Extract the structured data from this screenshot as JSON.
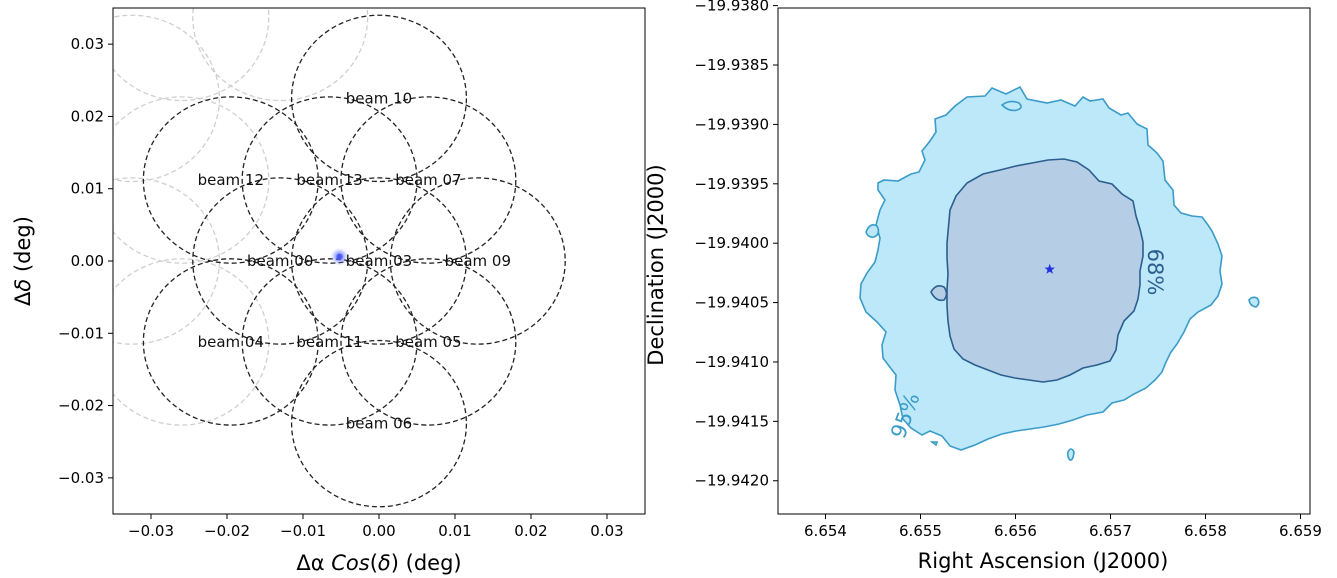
{
  "chart_data": [
    {
      "type": "scatter",
      "xlabel_parts": [
        "Δα ",
        "Cos",
        "(",
        "δ",
        ") (deg)"
      ],
      "ylabel_parts": [
        "Δ",
        "δ",
        " (deg)"
      ],
      "xlim": [
        -0.035,
        0.035
      ],
      "ylim": [
        -0.035,
        0.035
      ],
      "xticks": [
        "−0.03",
        "−0.02",
        "−0.01",
        "0.00",
        "0.01",
        "0.02",
        "0.03"
      ],
      "xtick_values": [
        -0.03,
        -0.02,
        -0.01,
        0.0,
        0.01,
        0.02,
        0.03
      ],
      "yticks": [
        "0.03",
        "0.02",
        "0.01",
        "0.00",
        "−0.01",
        "−0.02",
        "−0.03"
      ],
      "ytick_values": [
        0.03,
        0.02,
        0.01,
        0.0,
        -0.01,
        -0.02,
        -0.03
      ],
      "beam_radius": 0.0115,
      "beams": [
        {
          "name": "beam 10",
          "x": 0.0,
          "y": 0.0225,
          "color": "#222222"
        },
        {
          "name": "beam 12",
          "x": -0.0195,
          "y": 0.0112,
          "color": "#222222"
        },
        {
          "name": "beam 13",
          "x": -0.0065,
          "y": 0.0112,
          "color": "#222222"
        },
        {
          "name": "beam 07",
          "x": 0.0065,
          "y": 0.0112,
          "color": "#222222"
        },
        {
          "name": "beam 00",
          "x": -0.013,
          "y": 0.0,
          "color": "#222222"
        },
        {
          "name": "beam 03",
          "x": 0.0,
          "y": 0.0,
          "color": "#222222"
        },
        {
          "name": "beam 09",
          "x": 0.013,
          "y": 0.0,
          "color": "#222222"
        },
        {
          "name": "beam 04",
          "x": -0.0195,
          "y": -0.0112,
          "color": "#222222"
        },
        {
          "name": "beam 11",
          "x": -0.0065,
          "y": -0.0112,
          "color": "#222222"
        },
        {
          "name": "beam 05",
          "x": 0.0065,
          "y": -0.0112,
          "color": "#222222"
        },
        {
          "name": "beam 06",
          "x": 0.0,
          "y": -0.0225,
          "color": "#222222"
        }
      ],
      "faded_beams": [
        {
          "x": -0.026,
          "y": 0.0337
        },
        {
          "x": -0.013,
          "y": 0.0337
        },
        {
          "x": -0.0325,
          "y": 0.0225
        },
        {
          "x": -0.026,
          "y": 0.0112
        },
        {
          "x": -0.0325,
          "y": 0.0
        },
        {
          "x": -0.026,
          "y": -0.0112
        }
      ],
      "faded_color": "#cfcfcf",
      "source": {
        "x": -0.0052,
        "y": 0.0006,
        "color": "#4455ee"
      }
    },
    {
      "type": "area",
      "xlabel": "Right Ascension (J2000)",
      "ylabel": "Declination (J2000)",
      "xlim": [
        6.6535,
        6.6591
      ],
      "ylim": [
        -19.94228,
        -19.93802
      ],
      "xticks": [
        "6.654",
        "6.655",
        "6.656",
        "6.657",
        "6.658",
        "6.659"
      ],
      "xtick_values": [
        6.654,
        6.655,
        6.656,
        6.657,
        6.658,
        6.659
      ],
      "yticks": [
        "−19.9380",
        "−19.9385",
        "−19.9390",
        "−19.9395",
        "−19.9400",
        "−19.9405",
        "−19.9410",
        "−19.9415",
        "−19.9420"
      ],
      "ytick_values": [
        -19.938,
        -19.9385,
        -19.939,
        -19.9395,
        -19.94,
        -19.9405,
        -19.941,
        -19.9415,
        -19.942
      ],
      "contours": [
        {
          "label": "95%",
          "fill": "#bde8fa",
          "stroke": "#3a9cc8"
        },
        {
          "label": "68%",
          "fill": "#b6cde6",
          "stroke": "#2b5f8f"
        }
      ],
      "best_fit": {
        "ra": 6.65636,
        "dec": -19.94022,
        "color": "#2233dd"
      }
    }
  ]
}
